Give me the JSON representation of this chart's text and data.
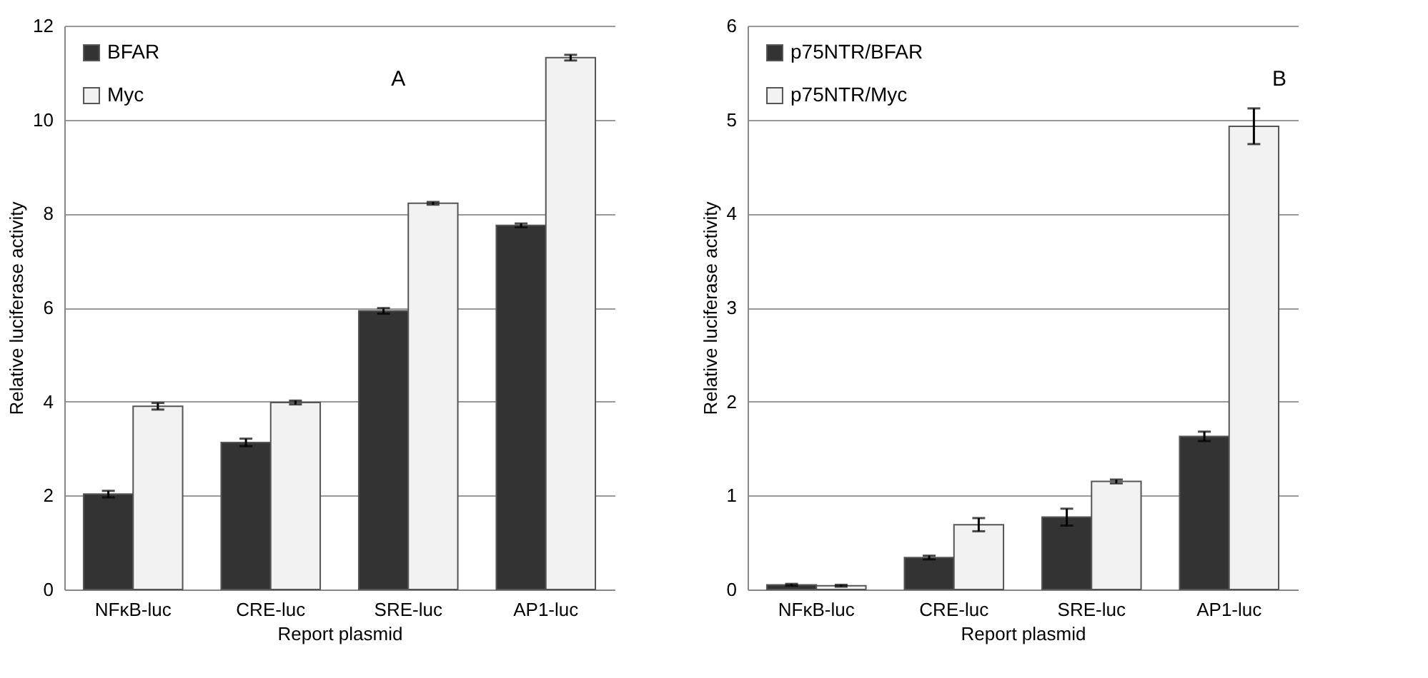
{
  "chart_data": [
    {
      "type": "bar",
      "xlabel": "Report plasmid",
      "ylabel": "Relative luciferase activity",
      "categories": [
        "NFκB-luc",
        "CRE-luc",
        "SRE-luc",
        "AP1-luc"
      ],
      "ylim": [
        0,
        12
      ],
      "yticks": [
        0,
        2,
        4,
        6,
        8,
        10,
        12
      ],
      "grid": "y",
      "legend": "top left",
      "annotations": [
        "A"
      ],
      "series": [
        {
          "name": "BFAR",
          "color": "#333333",
          "values": [
            2.03,
            3.13,
            5.93,
            7.75
          ],
          "errors": [
            0.07,
            0.08,
            0.06,
            0.04
          ]
        },
        {
          "name": "Myc",
          "color": "#f2f2f2",
          "values": [
            3.9,
            3.98,
            8.22,
            11.32
          ],
          "errors": [
            0.07,
            0.04,
            0.03,
            0.06
          ]
        }
      ]
    },
    {
      "type": "bar",
      "xlabel": "Report plasmid",
      "ylabel": "Relative luciferase activity",
      "categories": [
        "NFκB-luc",
        "CRE-luc",
        "SRE-luc",
        "AP1-luc"
      ],
      "ylim": [
        0,
        6
      ],
      "yticks": [
        0,
        1,
        2,
        3,
        4,
        5,
        6
      ],
      "grid": "y",
      "legend": "top left",
      "annotations": [
        "B"
      ],
      "series": [
        {
          "name": "p75NTR/BFAR",
          "color": "#333333",
          "values": [
            0.05,
            0.34,
            0.77,
            1.63
          ],
          "errors": [
            0.01,
            0.02,
            0.09,
            0.05
          ]
        },
        {
          "name": "p75NTR/Myc",
          "color": "#f2f2f2",
          "values": [
            0.04,
            0.69,
            1.15,
            4.93
          ],
          "errors": [
            0.01,
            0.07,
            0.02,
            0.19
          ]
        }
      ]
    }
  ]
}
